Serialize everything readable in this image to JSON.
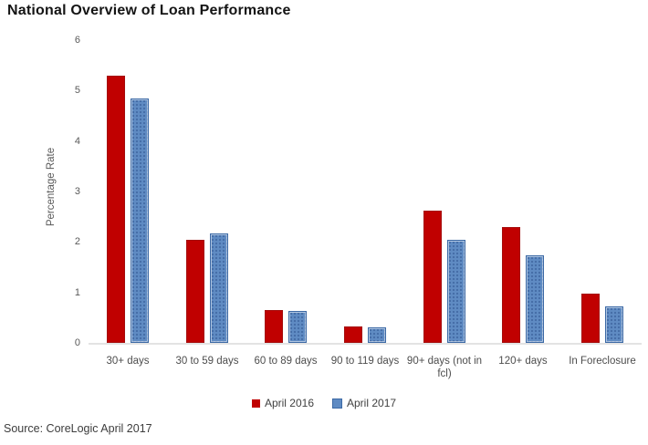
{
  "title": "National Overview of Loan Performance",
  "source": "Source: CoreLogic April 2017",
  "colors": {
    "april_2016": "#c00000",
    "april_2017": "#5f8bc3",
    "april_2017_border": "#3c69a5",
    "axis_line": "#e3e3e3",
    "tick_text": "#595959"
  },
  "chart_data": {
    "type": "bar",
    "categories": [
      "30+ days",
      "30 to 59 days",
      "60 to 89 days",
      "90 to 119 days",
      "90+ days (not in fcl)",
      "120+ days",
      "In Foreclosure"
    ],
    "series": [
      {
        "name": "April 2016",
        "color": "#c00000",
        "values": [
          5.3,
          2.05,
          0.65,
          0.32,
          2.62,
          2.3,
          0.97
        ]
      },
      {
        "name": "April 2017",
        "color": "#5f8bc3",
        "values": [
          4.85,
          2.17,
          0.63,
          0.31,
          2.04,
          1.73,
          0.72
        ]
      }
    ],
    "title": "National Overview of Loan Performance",
    "xlabel": "",
    "ylabel": "Percentage Rate",
    "ylim": [
      0,
      6
    ],
    "yticks": [
      0,
      1,
      2,
      3,
      4,
      5,
      6
    ],
    "grid": false,
    "legend_position": "bottom"
  }
}
